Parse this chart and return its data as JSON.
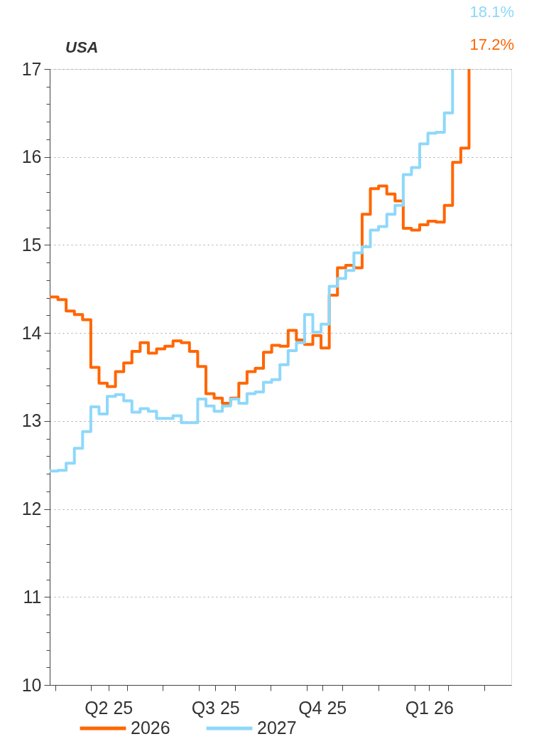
{
  "chart_data": {
    "type": "step",
    "title": "USA",
    "x": [
      "2025-03-27",
      "2025-04-03",
      "2025-04-10",
      "2025-04-17",
      "2025-04-24",
      "2025-05-01",
      "2025-05-08",
      "2025-05-15",
      "2025-05-22",
      "2025-05-29",
      "2025-06-05",
      "2025-06-12",
      "2025-06-19",
      "2025-06-26",
      "2025-07-03",
      "2025-07-10",
      "2025-07-17",
      "2025-07-24",
      "2025-07-31",
      "2025-08-07",
      "2025-08-14",
      "2025-08-21",
      "2025-08-28",
      "2025-09-04",
      "2025-09-11",
      "2025-09-18",
      "2025-09-25",
      "2025-10-02",
      "2025-10-09",
      "2025-10-16",
      "2025-10-23",
      "2025-10-30",
      "2025-11-06",
      "2025-11-13",
      "2025-11-20",
      "2025-11-27",
      "2025-12-04",
      "2025-12-11",
      "2025-12-18",
      "2025-12-25",
      "2026-01-01",
      "2026-01-08",
      "2026-01-15",
      "2026-01-22",
      "2026-01-29",
      "2026-02-05",
      "2026-02-12",
      "2026-02-19",
      "2026-02-26",
      "2026-03-05",
      "2026-03-12",
      "2026-03-19"
    ],
    "series": [
      {
        "name": "2026",
        "color": "#ff6600",
        "values": [
          14.41,
          14.38,
          14.25,
          14.21,
          14.15,
          13.61,
          13.43,
          13.39,
          13.56,
          13.66,
          13.79,
          13.89,
          13.77,
          13.82,
          13.85,
          13.91,
          13.89,
          13.79,
          13.62,
          13.31,
          13.26,
          13.2,
          13.26,
          13.43,
          13.56,
          13.6,
          13.78,
          13.86,
          13.85,
          14.03,
          13.92,
          13.87,
          13.97,
          13.83,
          14.43,
          14.74,
          14.77,
          14.74,
          15.35,
          15.64,
          15.67,
          15.58,
          15.5,
          15.19,
          15.17,
          15.23,
          15.27,
          15.26,
          15.45,
          15.94,
          16.1,
          17
        ]
      },
      {
        "name": "2027",
        "color": "#8ed8fa",
        "values": [
          12.43,
          12.44,
          12.52,
          12.69,
          12.88,
          13.16,
          13.08,
          13.28,
          13.3,
          13.23,
          13.1,
          13.14,
          13.11,
          13.03,
          13.03,
          13.06,
          12.98,
          12.98,
          13.25,
          13.17,
          13.11,
          13.17,
          13.25,
          13.2,
          13.31,
          13.33,
          13.44,
          13.47,
          13.64,
          13.8,
          13.89,
          14.21,
          14.01,
          14.1,
          14.53,
          14.62,
          14.71,
          14.91,
          14.98,
          15.17,
          15.21,
          15.35,
          15.45,
          15.8,
          15.88,
          16.15,
          16.27,
          16.28,
          16.5,
          17,
          null,
          null
        ]
      }
    ],
    "xlim": [
      "2025-03-27",
      "2026-04-24"
    ],
    "xticks": [
      {
        "value": "2025-04-01",
        "label": null
      },
      {
        "value": "2025-05-01",
        "label": null
      },
      {
        "value": "2025-06-01",
        "label": null
      },
      {
        "value": "2025-07-01",
        "label": null
      },
      {
        "value": "2025-08-01",
        "label": null
      },
      {
        "value": "2025-09-01",
        "label": null
      },
      {
        "value": "2025-10-01",
        "label": null
      },
      {
        "value": "2025-11-01",
        "label": null
      },
      {
        "value": "2025-12-01",
        "label": null
      },
      {
        "value": "2026-01-01",
        "label": null
      },
      {
        "value": "2026-02-01",
        "label": null
      },
      {
        "value": "2026-03-01",
        "label": null
      },
      {
        "value": "2026-04-01",
        "label": null
      },
      {
        "value": "2025-05-16",
        "label": "Q2 25"
      },
      {
        "value": "2025-08-15",
        "label": "Q3 25"
      },
      {
        "value": "2025-11-14",
        "label": "Q4 25"
      },
      {
        "value": "2026-02-13",
        "label": "Q1 26"
      }
    ],
    "ylim": [
      10,
      17
    ],
    "yticks": [
      10,
      {
        "value": 10.2,
        "label": null
      },
      {
        "value": 10.4,
        "label": null
      },
      {
        "value": 10.6,
        "label": null
      },
      {
        "value": 10.8,
        "label": null
      },
      11,
      {
        "value": 11.2,
        "label": null
      },
      {
        "value": 11.4,
        "label": null
      },
      {
        "value": 11.6,
        "label": null
      },
      {
        "value": 11.8,
        "label": null
      },
      12,
      {
        "value": 12.2,
        "label": null
      },
      {
        "value": 12.4,
        "label": null
      },
      {
        "value": 12.6,
        "label": null
      },
      {
        "value": 12.8,
        "label": null
      },
      13,
      {
        "value": 13.2,
        "label": null
      },
      {
        "value": 13.4,
        "label": null
      },
      {
        "value": 13.6,
        "label": null
      },
      {
        "value": 13.8,
        "label": null
      },
      14,
      {
        "value": 14.2,
        "label": null
      },
      {
        "value": 14.4,
        "label": null
      },
      {
        "value": 14.6,
        "label": null
      },
      {
        "value": 14.8,
        "label": null
      },
      15,
      {
        "value": 15.2,
        "label": null
      },
      {
        "value": 15.4,
        "label": null
      },
      {
        "value": 15.6,
        "label": null
      },
      {
        "value": 15.8,
        "label": null
      },
      16,
      {
        "value": 16.2,
        "label": null
      },
      {
        "value": 16.4,
        "label": null
      },
      {
        "value": 16.6,
        "label": null
      },
      {
        "value": 16.8,
        "label": null
      },
      17
    ],
    "grid": "y",
    "legend": "bottom",
    "annotations": [
      "17.2%",
      "18.1%"
    ]
  }
}
